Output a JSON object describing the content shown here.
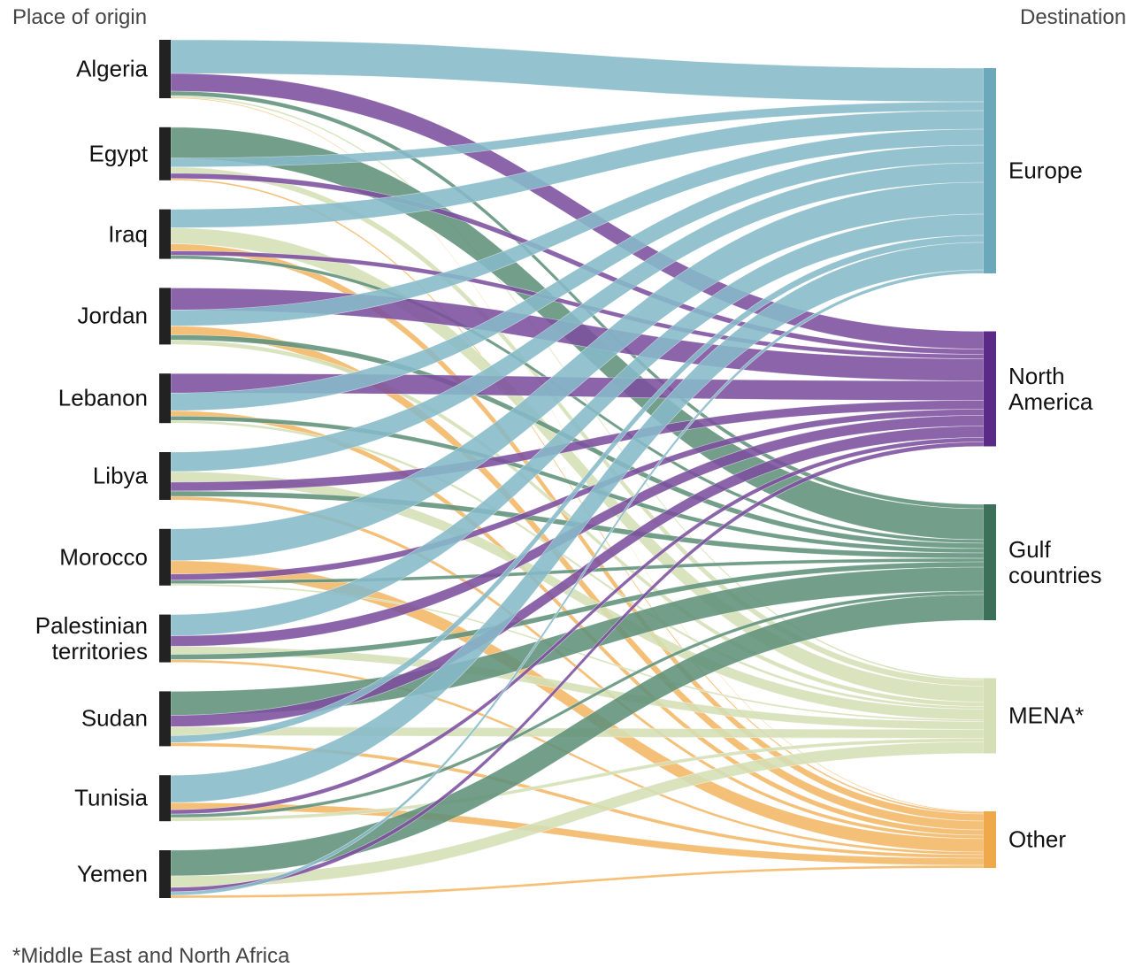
{
  "chart_data": {
    "type": "sankey",
    "title": "Place of origin",
    "target_title": "Destination",
    "footnote": "*Middle East and North Africa",
    "sources": [
      "Algeria",
      "Egypt",
      "Iraq",
      "Jordan",
      "Lebanon",
      "Libya",
      "Morocco",
      "Palestinian territories",
      "Sudan",
      "Tunisia",
      "Yemen"
    ],
    "source_color": "#222222",
    "targets": [
      {
        "name": "Europe",
        "color": "#86b9c8",
        "node_color": "#6aa8ba"
      },
      {
        "name": "North America",
        "color": "#7b4f9d",
        "node_color": "#5b2a86"
      },
      {
        "name": "Gulf countries",
        "color": "#5e917a",
        "node_color": "#3d7058"
      },
      {
        "name": "MENA*",
        "color": "#d4dfb5",
        "node_color": "#d4dfb5"
      },
      {
        "name": "Other",
        "color": "#f2b664",
        "node_color": "#f0a94a"
      }
    ],
    "links": [
      {
        "source": 0,
        "target": 0,
        "value": 38
      },
      {
        "source": 0,
        "target": 1,
        "value": 20
      },
      {
        "source": 0,
        "target": 2,
        "value": 5
      },
      {
        "source": 0,
        "target": 3,
        "value": 2
      },
      {
        "source": 0,
        "target": 4,
        "value": 1
      },
      {
        "source": 1,
        "target": 2,
        "value": 35
      },
      {
        "source": 1,
        "target": 0,
        "value": 10
      },
      {
        "source": 1,
        "target": 3,
        "value": 7
      },
      {
        "source": 1,
        "target": 1,
        "value": 6
      },
      {
        "source": 1,
        "target": 4,
        "value": 2
      },
      {
        "source": 2,
        "target": 0,
        "value": 21
      },
      {
        "source": 2,
        "target": 3,
        "value": 18
      },
      {
        "source": 2,
        "target": 4,
        "value": 8
      },
      {
        "source": 2,
        "target": 1,
        "value": 5
      },
      {
        "source": 2,
        "target": 2,
        "value": 4
      },
      {
        "source": 3,
        "target": 1,
        "value": 25
      },
      {
        "source": 3,
        "target": 0,
        "value": 18
      },
      {
        "source": 3,
        "target": 4,
        "value": 10
      },
      {
        "source": 3,
        "target": 2,
        "value": 6
      },
      {
        "source": 3,
        "target": 3,
        "value": 5
      },
      {
        "source": 4,
        "target": 1,
        "value": 22
      },
      {
        "source": 4,
        "target": 0,
        "value": 20
      },
      {
        "source": 4,
        "target": 4,
        "value": 6
      },
      {
        "source": 4,
        "target": 2,
        "value": 5
      },
      {
        "source": 4,
        "target": 3,
        "value": 3
      },
      {
        "source": 5,
        "target": 0,
        "value": 22
      },
      {
        "source": 5,
        "target": 3,
        "value": 12
      },
      {
        "source": 5,
        "target": 1,
        "value": 10
      },
      {
        "source": 5,
        "target": 2,
        "value": 6
      },
      {
        "source": 5,
        "target": 4,
        "value": 4
      },
      {
        "source": 6,
        "target": 0,
        "value": 36
      },
      {
        "source": 6,
        "target": 4,
        "value": 15
      },
      {
        "source": 6,
        "target": 1,
        "value": 7
      },
      {
        "source": 6,
        "target": 2,
        "value": 4
      },
      {
        "source": 6,
        "target": 3,
        "value": 2
      },
      {
        "source": 7,
        "target": 0,
        "value": 24
      },
      {
        "source": 7,
        "target": 1,
        "value": 12
      },
      {
        "source": 7,
        "target": 3,
        "value": 9
      },
      {
        "source": 7,
        "target": 2,
        "value": 6
      },
      {
        "source": 7,
        "target": 4,
        "value": 3
      },
      {
        "source": 8,
        "target": 2,
        "value": 27
      },
      {
        "source": 8,
        "target": 1,
        "value": 13
      },
      {
        "source": 8,
        "target": 3,
        "value": 10
      },
      {
        "source": 8,
        "target": 0,
        "value": 8
      },
      {
        "source": 8,
        "target": 4,
        "value": 4
      },
      {
        "source": 9,
        "target": 0,
        "value": 31
      },
      {
        "source": 9,
        "target": 4,
        "value": 8
      },
      {
        "source": 9,
        "target": 1,
        "value": 5
      },
      {
        "source": 9,
        "target": 2,
        "value": 4
      },
      {
        "source": 9,
        "target": 3,
        "value": 4
      },
      {
        "source": 10,
        "target": 2,
        "value": 29
      },
      {
        "source": 10,
        "target": 3,
        "value": 13
      },
      {
        "source": 10,
        "target": 1,
        "value": 5
      },
      {
        "source": 10,
        "target": 0,
        "value": 4
      },
      {
        "source": 10,
        "target": 4,
        "value": 3
      }
    ]
  }
}
